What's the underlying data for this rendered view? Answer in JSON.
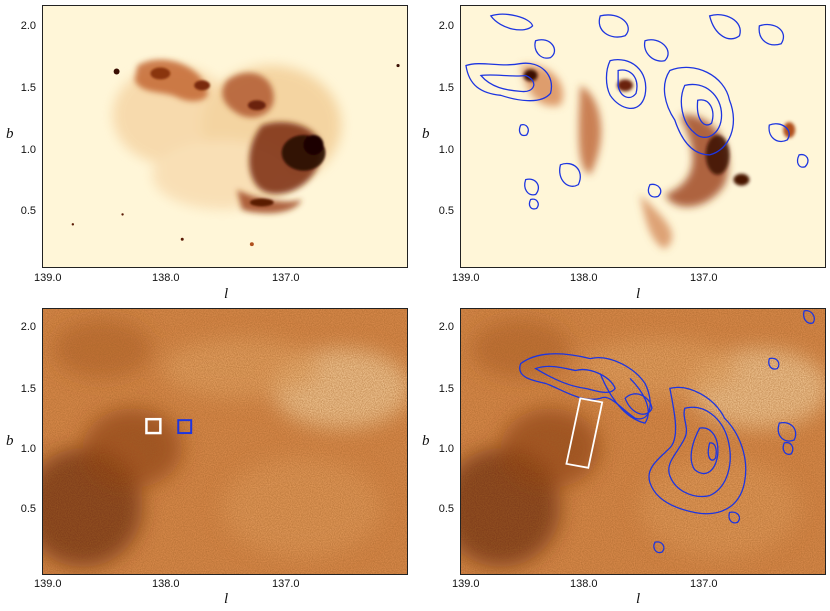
{
  "panels": [
    {
      "id": "top-left",
      "xticks": [
        "139.0",
        "138.0",
        "137.0"
      ],
      "yticks": [
        "2.0",
        "1.5",
        "1.0",
        "0.5"
      ],
      "xlabel": "l",
      "ylabel": "b"
    },
    {
      "id": "top-right",
      "xticks": [
        "139.0",
        "138.0",
        "137.0"
      ],
      "yticks": [
        "2.0",
        "1.5",
        "1.0",
        "0.5"
      ],
      "xlabel": "l",
      "ylabel": "b"
    },
    {
      "id": "bottom-left",
      "xticks": [
        "139.0",
        "138.0",
        "137.0"
      ],
      "yticks": [
        "2.0",
        "1.5",
        "1.0",
        "0.5"
      ],
      "xlabel": "l",
      "ylabel": "b"
    },
    {
      "id": "bottom-right",
      "xticks": [
        "139.0",
        "138.0",
        "137.0"
      ],
      "yticks": [
        "2.0",
        "1.5",
        "1.0",
        "0.5"
      ],
      "xlabel": "l",
      "ylabel": "b"
    }
  ],
  "colors": {
    "background_light": "#fff6d8",
    "emission_dark": "#2a0800",
    "emission_mid": "#c0602a",
    "contour": "#1d35e0",
    "marker_white": "#ffffff",
    "marker_blue": "#1d35e0",
    "map_bg": "#d8894a"
  }
}
